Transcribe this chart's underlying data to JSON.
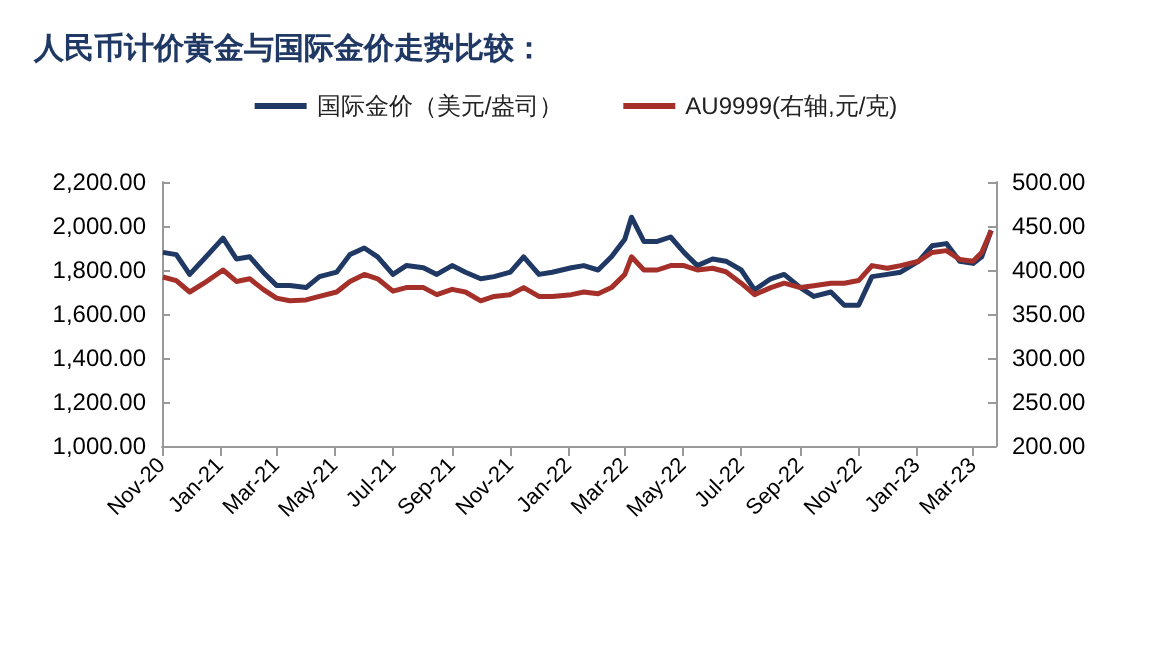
{
  "chart_data": {
    "type": "line",
    "title": "人民币计价黄金与国际金价走势比较：",
    "x": [
      "2020-11-02",
      "2020-11-16",
      "2020-11-30",
      "2020-12-15",
      "2021-01-04",
      "2021-01-18",
      "2021-02-01",
      "2021-02-15",
      "2021-03-01",
      "2021-03-15",
      "2021-04-01",
      "2021-04-15",
      "2021-05-03",
      "2021-05-17",
      "2021-06-01",
      "2021-06-15",
      "2021-07-01",
      "2021-07-15",
      "2021-08-02",
      "2021-08-16",
      "2021-09-01",
      "2021-09-15",
      "2021-10-01",
      "2021-10-15",
      "2021-11-01",
      "2021-11-15",
      "2021-12-01",
      "2021-12-15",
      "2022-01-04",
      "2022-01-17",
      "2022-02-01",
      "2022-02-15",
      "2022-03-01",
      "2022-03-08",
      "2022-03-21",
      "2022-04-04",
      "2022-04-18",
      "2022-05-02",
      "2022-05-16",
      "2022-06-01",
      "2022-06-15",
      "2022-07-01",
      "2022-07-15",
      "2022-08-01",
      "2022-08-15",
      "2022-09-01",
      "2022-09-15",
      "2022-10-03",
      "2022-10-17",
      "2022-11-01",
      "2022-11-15",
      "2022-12-01",
      "2022-12-15",
      "2023-01-03",
      "2023-01-17",
      "2023-02-01",
      "2023-02-15",
      "2023-03-01",
      "2023-03-10",
      "2023-03-20"
    ],
    "series": [
      {
        "name": "国际金价（美元/盎司）",
        "color": "#1f3864",
        "values": [
          1880,
          1870,
          1780,
          1850,
          1945,
          1850,
          1860,
          1790,
          1730,
          1730,
          1720,
          1770,
          1790,
          1870,
          1900,
          1860,
          1780,
          1820,
          1810,
          1780,
          1820,
          1790,
          1760,
          1770,
          1790,
          1860,
          1780,
          1790,
          1810,
          1820,
          1800,
          1860,
          1940,
          2040,
          1930,
          1930,
          1950,
          1880,
          1820,
          1850,
          1840,
          1800,
          1710,
          1760,
          1780,
          1720,
          1680,
          1700,
          1640,
          1640,
          1770,
          1780,
          1790,
          1840,
          1910,
          1920,
          1840,
          1830,
          1860,
          1980
        ]
      },
      {
        "name": "AU9999(右轴,元/克)",
        "color": "#a5302a",
        "axis": "y2",
        "values": [
          392,
          388,
          375,
          385,
          400,
          387,
          390,
          378,
          368,
          365,
          366,
          370,
          375,
          387,
          395,
          390,
          376,
          380,
          380,
          372,
          378,
          375,
          365,
          370,
          372,
          380,
          370,
          370,
          372,
          375,
          373,
          380,
          395,
          415,
          400,
          400,
          405,
          405,
          400,
          402,
          398,
          385,
          372,
          380,
          385,
          380,
          382,
          385,
          385,
          388,
          405,
          402,
          405,
          410,
          420,
          422,
          412,
          410,
          420,
          445
        ]
      }
    ],
    "xlim": [
      "2020-11-01",
      "2023-03-25"
    ],
    "xticks": [
      {
        "value": "2020-11-01",
        "label": "Nov-20"
      },
      {
        "value": "2021-01-01",
        "label": "Jan-21"
      },
      {
        "value": "2021-03-01",
        "label": "Mar-21"
      },
      {
        "value": "2021-05-01",
        "label": "May-21"
      },
      {
        "value": "2021-07-01",
        "label": "Jul-21"
      },
      {
        "value": "2021-09-01",
        "label": "Sep-21"
      },
      {
        "value": "2021-11-01",
        "label": "Nov-21"
      },
      {
        "value": "2022-01-01",
        "label": "Jan-22"
      },
      {
        "value": "2022-03-01",
        "label": "Mar-22"
      },
      {
        "value": "2022-05-01",
        "label": "May-22"
      },
      {
        "value": "2022-07-01",
        "label": "Jul-22"
      },
      {
        "value": "2022-09-01",
        "label": "Sep-22"
      },
      {
        "value": "2022-11-01",
        "label": "Nov-22"
      },
      {
        "value": "2023-01-01",
        "label": "Jan-23"
      },
      {
        "value": "2023-03-01",
        "label": "Mar-23"
      }
    ],
    "ylim": [
      1000,
      2200
    ],
    "yticks": [
      {
        "value": 1000,
        "label": "1,000.00"
      },
      {
        "value": 1200,
        "label": "1,200.00"
      },
      {
        "value": 1400,
        "label": "1,400.00"
      },
      {
        "value": 1600,
        "label": "1,600.00"
      },
      {
        "value": 1800,
        "label": "1,800.00"
      },
      {
        "value": 2000,
        "label": "2,000.00"
      },
      {
        "value": 2200,
        "label": "2,200.00"
      }
    ],
    "y2lim": [
      200,
      500
    ],
    "y2ticks": [
      {
        "value": 200,
        "label": "200.00"
      },
      {
        "value": 250,
        "label": "250.00"
      },
      {
        "value": 300,
        "label": "300.00"
      },
      {
        "value": 350,
        "label": "350.00"
      },
      {
        "value": 400,
        "label": "400.00"
      },
      {
        "value": 450,
        "label": "450.00"
      },
      {
        "value": 500,
        "label": "500.00"
      }
    ],
    "grid": false,
    "legend": "top",
    "marker": "none",
    "line_style": "solid"
  }
}
